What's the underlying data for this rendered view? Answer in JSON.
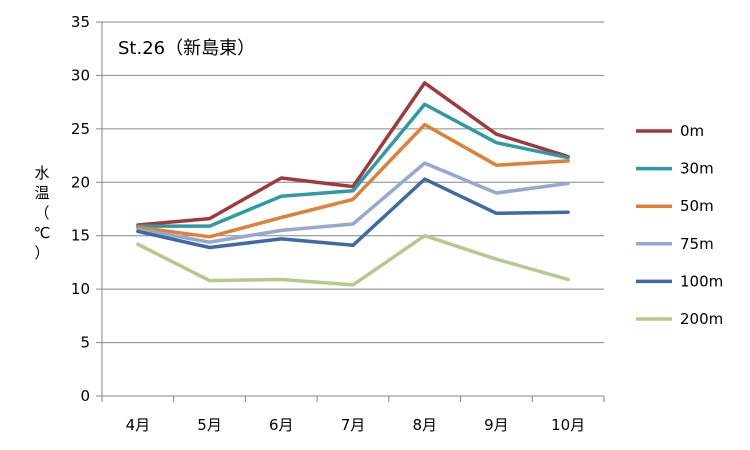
{
  "chart_data": {
    "type": "line",
    "title": "St.26（新島東）",
    "ylabel_chars": [
      "水",
      "温",
      "（",
      "℃",
      "）"
    ],
    "xlabel": "",
    "categories": [
      "4月",
      "5月",
      "6月",
      "7月",
      "8月",
      "9月",
      "10月"
    ],
    "ylim": [
      0,
      35
    ],
    "yticks": [
      0,
      5,
      10,
      15,
      20,
      25,
      30,
      35
    ],
    "grid": "horizontal",
    "legend_position": "right",
    "series": [
      {
        "name": "0m",
        "color": "#A0393B",
        "values": [
          16.0,
          16.6,
          20.4,
          19.6,
          29.3,
          24.5,
          22.4
        ]
      },
      {
        "name": "30m",
        "color": "#2E9AA8",
        "values": [
          15.9,
          15.9,
          18.7,
          19.2,
          27.3,
          23.7,
          22.3
        ]
      },
      {
        "name": "50m",
        "color": "#E07F35",
        "values": [
          15.8,
          14.9,
          16.7,
          18.4,
          25.4,
          21.6,
          22.0
        ]
      },
      {
        "name": "75m",
        "color": "#94A8D0",
        "values": [
          15.6,
          14.4,
          15.5,
          16.1,
          21.8,
          19.0,
          19.9
        ]
      },
      {
        "name": "100m",
        "color": "#3E6AA5",
        "values": [
          15.4,
          13.9,
          14.7,
          14.1,
          20.3,
          17.1,
          17.2
        ]
      },
      {
        "name": "200m",
        "color": "#B2CB8A",
        "values": [
          14.2,
          10.8,
          10.9,
          10.4,
          15.0,
          12.8,
          10.9
        ]
      }
    ]
  }
}
